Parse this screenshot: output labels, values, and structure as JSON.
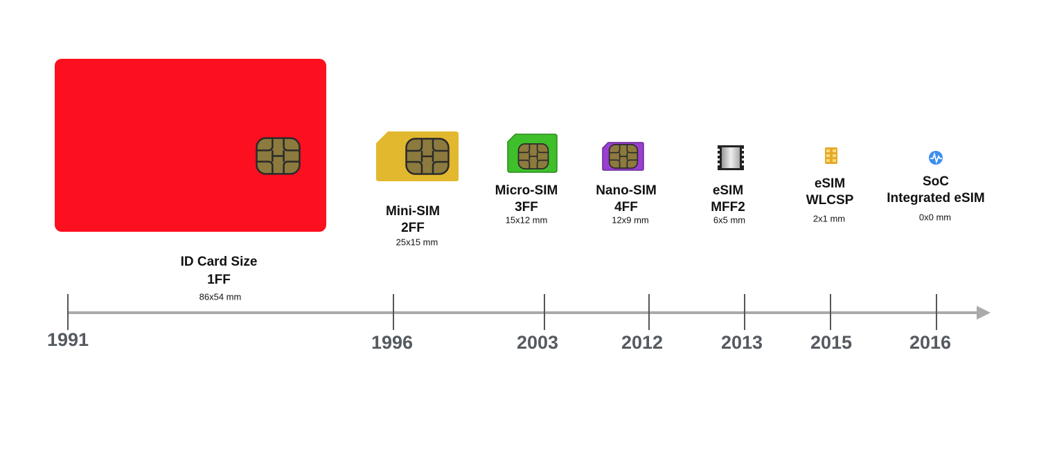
{
  "items": [
    {
      "year": "1991",
      "name": "ID Card Size",
      "form": "1FF",
      "size": "86x54 mm"
    },
    {
      "year": "1996",
      "name": "Mini-SIM",
      "form": "2FF",
      "size": "25x15 mm"
    },
    {
      "year": "2003",
      "name": "Micro-SIM",
      "form": "3FF",
      "size": "15x12 mm"
    },
    {
      "year": "2012",
      "name": "Nano-SIM",
      "form": "4FF",
      "size": "12x9 mm"
    },
    {
      "year": "2013",
      "name": "eSIM",
      "form": "MFF2",
      "size": "6x5 mm"
    },
    {
      "year": "2015",
      "name": "eSIM",
      "form": "WLCSP",
      "size": "2x1 mm"
    },
    {
      "year": "2016",
      "name": "SoC",
      "form": "Integrated eSIM",
      "size": "0x0 mm"
    }
  ]
}
